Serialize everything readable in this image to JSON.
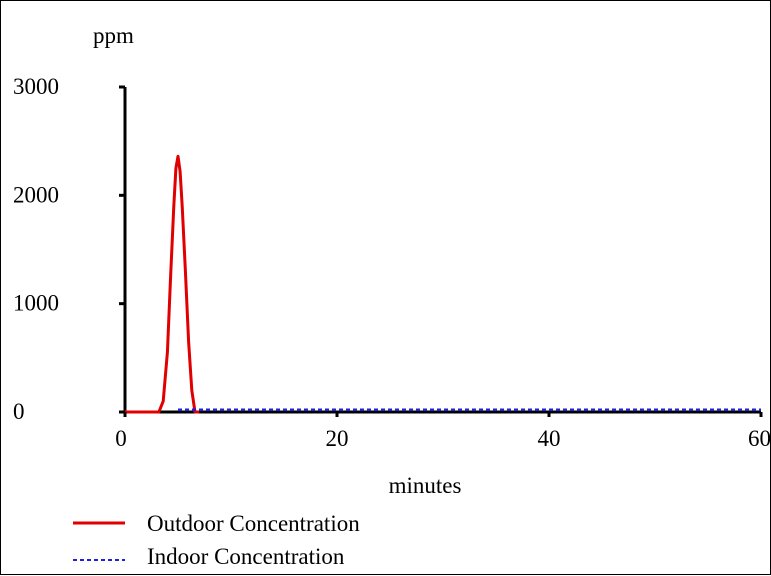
{
  "chart_data": {
    "type": "line",
    "title": "",
    "xlabel": "minutes",
    "ylabel": "ppm",
    "xlim": [
      0,
      60
    ],
    "ylim": [
      0,
      3000
    ],
    "x_ticks": [
      0,
      20,
      40,
      60
    ],
    "y_ticks": [
      0,
      1000,
      2000,
      3000
    ],
    "x_tick_labels": [
      "0",
      "20",
      "40",
      "60"
    ],
    "y_tick_labels": [
      "0",
      "1000",
      "2000",
      "3000"
    ],
    "grid": false,
    "legend_position": "bottom-left",
    "series": [
      {
        "name": "Outdoor Concentration",
        "color": "#e00000",
        "style": "solid",
        "x": [
          0,
          3.2,
          3.6,
          4.0,
          4.3,
          4.6,
          4.8,
          5.0,
          5.2,
          5.4,
          5.7,
          6.0,
          6.3,
          6.6,
          7.0
        ],
        "y": [
          0,
          0,
          100,
          550,
          1250,
          1900,
          2250,
          2360,
          2220,
          1900,
          1300,
          650,
          200,
          0,
          0
        ]
      },
      {
        "name": "Indoor Concentration",
        "color": "#1f1fdd",
        "style": "dashed",
        "x": [
          5,
          60
        ],
        "y": [
          20,
          20
        ]
      }
    ]
  }
}
